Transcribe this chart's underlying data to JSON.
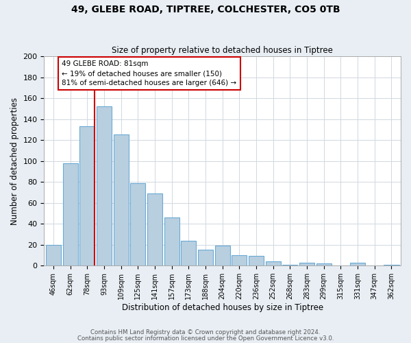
{
  "title1": "49, GLEBE ROAD, TIPTREE, COLCHESTER, CO5 0TB",
  "title2": "Size of property relative to detached houses in Tiptree",
  "xlabel": "Distribution of detached houses by size in Tiptree",
  "ylabel": "Number of detached properties",
  "bar_labels": [
    "46sqm",
    "62sqm",
    "78sqm",
    "93sqm",
    "109sqm",
    "125sqm",
    "141sqm",
    "157sqm",
    "173sqm",
    "188sqm",
    "204sqm",
    "220sqm",
    "236sqm",
    "252sqm",
    "268sqm",
    "283sqm",
    "299sqm",
    "315sqm",
    "331sqm",
    "347sqm",
    "362sqm"
  ],
  "bar_values": [
    20,
    98,
    133,
    152,
    125,
    79,
    69,
    46,
    24,
    15,
    19,
    10,
    9,
    4,
    1,
    3,
    2,
    0,
    3,
    0,
    1
  ],
  "bar_color": "#b8cfe0",
  "bar_edgecolor": "#6aaad4",
  "ylim": [
    0,
    200
  ],
  "yticks": [
    0,
    20,
    40,
    60,
    80,
    100,
    120,
    140,
    160,
    180,
    200
  ],
  "vline_x_index": 2,
  "vline_color": "#cc0000",
  "annotation_title": "49 GLEBE ROAD: 81sqm",
  "annotation_line1": "← 19% of detached houses are smaller (150)",
  "annotation_line2": "81% of semi-detached houses are larger (646) →",
  "footer1": "Contains HM Land Registry data © Crown copyright and database right 2024.",
  "footer2": "Contains public sector information licensed under the Open Government Licence v3.0.",
  "background_color": "#e8eef4",
  "plot_bg_color": "#ffffff",
  "grid_color": "#d0d8e0"
}
